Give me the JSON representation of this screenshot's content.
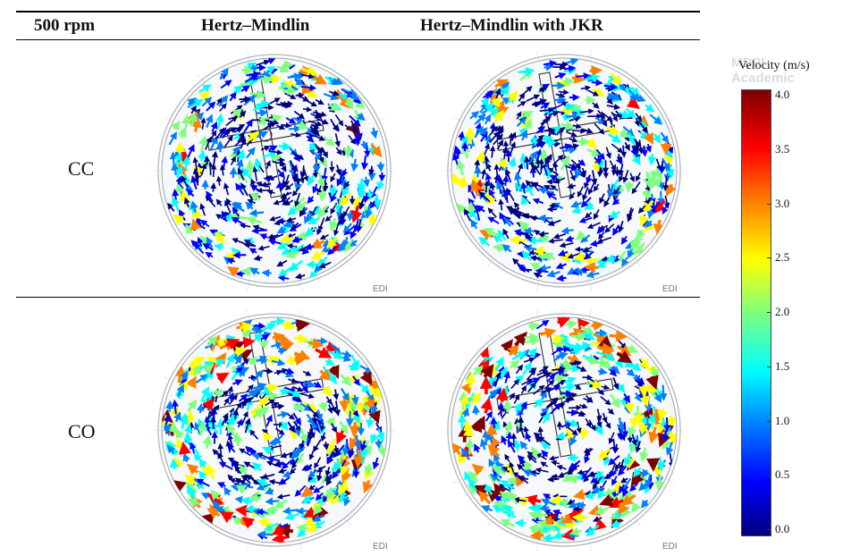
{
  "table": {
    "headers": [
      "500 rpm",
      "Hertz–Mindlin",
      "Hertz–Mindlin with JKR"
    ],
    "rows": [
      {
        "label": "CC"
      },
      {
        "label": "CO"
      }
    ]
  },
  "legend": {
    "title": "Velocity (m/s)",
    "ticks": [
      "4.0",
      "3.5",
      "3.0",
      "2.5",
      "2.0",
      "1.5",
      "1.0",
      "0.5",
      "0.0"
    ],
    "colors": [
      "#00007f",
      "#0000ff",
      "#007fff",
      "#00ffff",
      "#7fff7f",
      "#ffff00",
      "#ff7f00",
      "#ff0000",
      "#7f0000"
    ]
  },
  "watermark": {
    "line1": "MDPI",
    "line2": "Academic"
  },
  "panel_mark": "EDI",
  "panel_names": [
    "cc-hertz-mindlin",
    "cc-hertz-mindlin-jkr",
    "co-hertz-mindlin",
    "co-hertz-mindlin-jkr"
  ]
}
